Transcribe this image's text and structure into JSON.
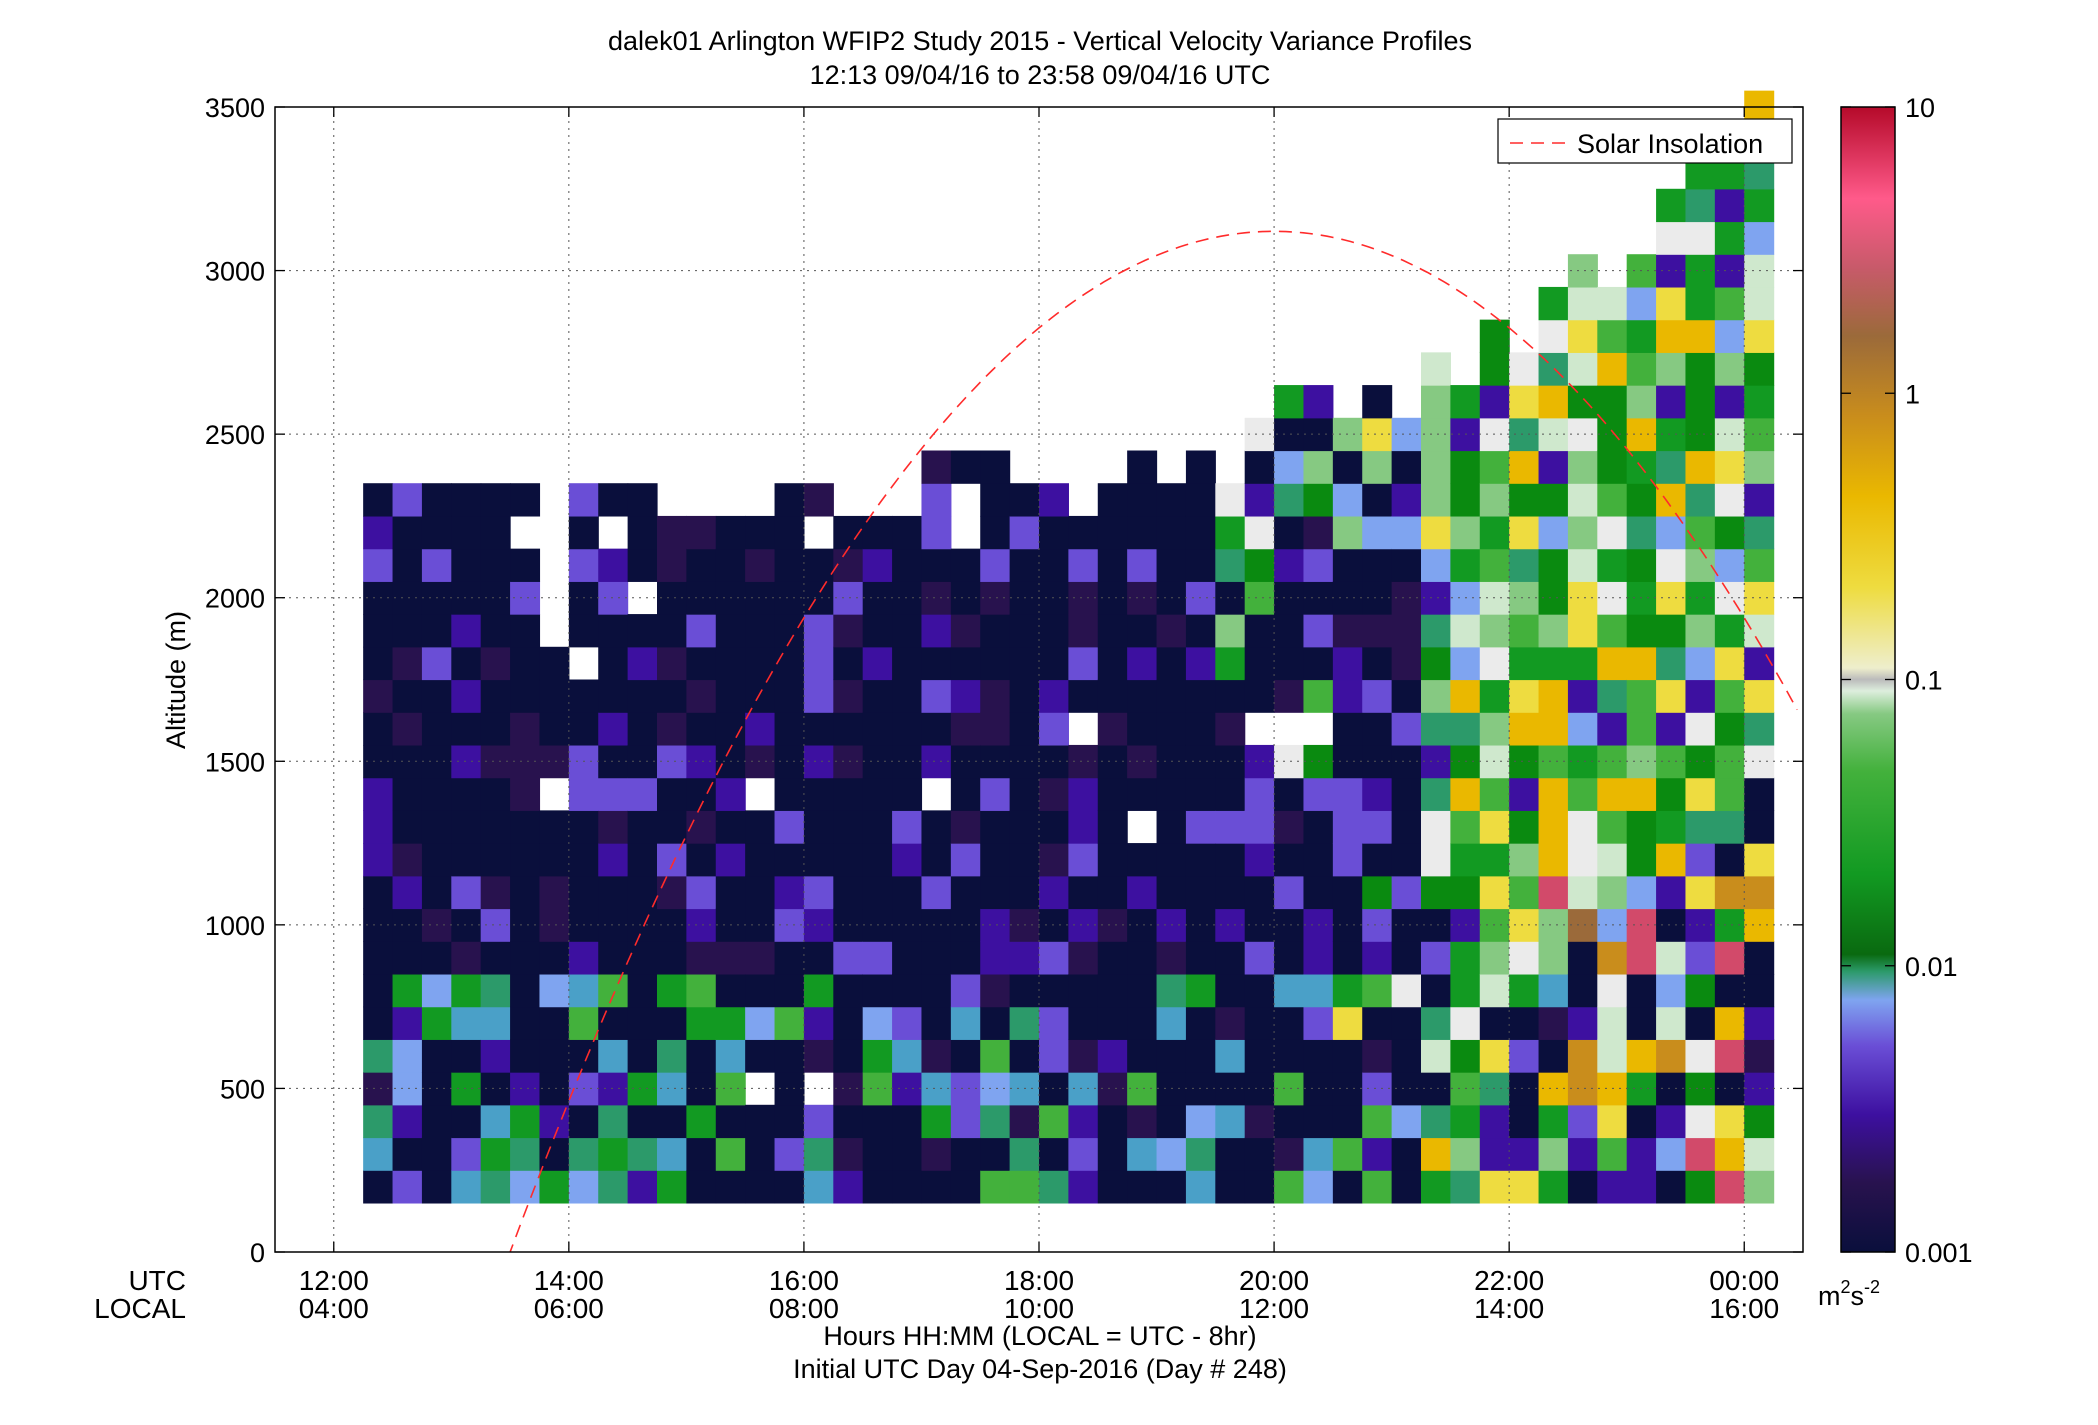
{
  "chart_data": {
    "type": "heatmap",
    "title": "dalek01 Arlington WFIP2 Study 2015 - Vertical Velocity Variance Profiles",
    "subtitle": "12:13 09/04/16 to 23:58 09/04/16  UTC",
    "ylabel": "Altitude (m)",
    "xlabel": "Hours HH:MM  (LOCAL = UTC - 8hr)",
    "xlabel2": "Initial UTC Day 04-Sep-2016 (Day # 248)",
    "x_row_labels": [
      "UTC",
      "LOCAL"
    ],
    "x_ticks_utc": [
      "12:00",
      "14:00",
      "16:00",
      "18:00",
      "20:00",
      "22:00",
      "00:00"
    ],
    "x_ticks_local": [
      "04:00",
      "06:00",
      "08:00",
      "10:00",
      "12:00",
      "14:00",
      "16:00"
    ],
    "x_tick_hours": [
      12,
      14,
      16,
      18,
      20,
      22,
      24
    ],
    "xlim_hours": [
      11.5,
      24.5
    ],
    "y_ticks": [
      0,
      500,
      1000,
      1500,
      2000,
      2500,
      3000,
      3500
    ],
    "y_tick_labels": [
      "0",
      "500",
      "1000",
      "1500",
      "2000",
      "2500",
      "3000",
      "3500"
    ],
    "ylim": [
      0,
      3500
    ],
    "grid": true,
    "legend": {
      "entries": [
        "Solar Insolation"
      ],
      "position": "top-right"
    },
    "colorbar": {
      "scale": "log",
      "range": [
        0.001,
        10
      ],
      "ticks": [
        0.001,
        0.01,
        0.1,
        1,
        10
      ],
      "tick_labels": [
        "0.001",
        "0.01",
        "0.1",
        "1",
        "10"
      ],
      "units_base": "m",
      "units_exp1": "2",
      "units_mid": "s",
      "units_exp2": "-2"
    },
    "grid_spec": {
      "start_hour": 12.25,
      "bin_hours": 0.25,
      "start_alt": 200,
      "bin_alt": 100,
      "n_bins": 48
    },
    "solar_insolation": {
      "peak_hour": 20.0,
      "peak_alt": 3120,
      "zero_hour": 13.5
    },
    "profiles": [
      {
        "top": 2300,
        "wet": 0,
        "holes": []
      },
      {
        "top": 2300,
        "wet": 0,
        "holes": []
      },
      {
        "top": 2300,
        "wet": 0,
        "holes": [
          1550
        ]
      },
      {
        "top": 2300,
        "wet": 0,
        "holes": []
      },
      {
        "top": 2300,
        "wet": 0,
        "holes": []
      },
      {
        "top": 2300,
        "wet": 0,
        "holes": [
          2200,
          1150
        ]
      },
      {
        "top": 2300,
        "wet": 0,
        "holes": [
          2300,
          2200,
          2100,
          2000,
          1900,
          1400
        ]
      },
      {
        "top": 2300,
        "wet": 0,
        "holes": [
          1800
        ]
      },
      {
        "top": 2300,
        "wet": 0,
        "holes": [
          2200
        ]
      },
      {
        "top": 2300,
        "wet": 0,
        "holes": [
          2000
        ]
      },
      {
        "top": 2200,
        "wet": 0,
        "holes": []
      },
      {
        "top": 2200,
        "wet": 0,
        "holes": []
      },
      {
        "top": 2200,
        "wet": 0,
        "holes": []
      },
      {
        "top": 2200,
        "wet": 0,
        "holes": [
          1400,
          500
        ]
      },
      {
        "top": 2300,
        "wet": 0,
        "holes": []
      },
      {
        "top": 2300,
        "wet": 0,
        "holes": [
          2200,
          500
        ]
      },
      {
        "top": 2200,
        "wet": 0,
        "holes": []
      },
      {
        "top": 2200,
        "wet": 0,
        "holes": []
      },
      {
        "top": 2200,
        "wet": 0,
        "holes": []
      },
      {
        "top": 2400,
        "wet": 0,
        "holes": [
          1400
        ]
      },
      {
        "top": 2400,
        "wet": 0,
        "holes": [
          2300,
          2200
        ]
      },
      {
        "top": 2400,
        "wet": 0,
        "holes": []
      },
      {
        "top": 2300,
        "wet": 0,
        "holes": []
      },
      {
        "top": 2300,
        "wet": 0,
        "holes": []
      },
      {
        "top": 2200,
        "wet": 0,
        "holes": [
          1600
        ]
      },
      {
        "top": 2300,
        "wet": 0,
        "holes": []
      },
      {
        "top": 2400,
        "wet": 0,
        "holes": [
          1300
        ]
      },
      {
        "top": 2300,
        "wet": 0,
        "holes": []
      },
      {
        "top": 2400,
        "wet": 0,
        "holes": []
      },
      {
        "top": 2300,
        "wet": 0.25,
        "holes": []
      },
      {
        "top": 2500,
        "wet": 0.25,
        "holes": [
          1600
        ]
      },
      {
        "top": 2600,
        "wet": 0.15,
        "holes": [
          1600
        ]
      },
      {
        "top": 2600,
        "wet": 0.15,
        "holes": [
          1600
        ]
      },
      {
        "top": 2500,
        "wet": 0.2,
        "holes": []
      },
      {
        "top": 2600,
        "wet": 0.2,
        "holes": []
      },
      {
        "top": 2500,
        "wet": 0.2,
        "holes": []
      },
      {
        "top": 2700,
        "wet": 0.6,
        "holes": []
      },
      {
        "top": 2600,
        "wet": 0.8,
        "holes": []
      },
      {
        "top": 2800,
        "wet": 0.85,
        "holes": []
      },
      {
        "top": 2700,
        "wet": 0.9,
        "holes": []
      },
      {
        "top": 2900,
        "wet": 0.95,
        "holes": []
      },
      {
        "top": 3000,
        "wet": 0.95,
        "holes": []
      },
      {
        "top": 2900,
        "wet": 0.95,
        "holes": []
      },
      {
        "top": 3000,
        "wet": 0.95,
        "holes": []
      },
      {
        "top": 3200,
        "wet": 0.95,
        "holes": []
      },
      {
        "top": 3300,
        "wet": 0.95,
        "holes": []
      },
      {
        "top": 3400,
        "wet": 0.95,
        "holes": []
      },
      {
        "top": 3500,
        "wet": 0.95,
        "holes": []
      }
    ]
  },
  "colors": {
    "solar": "#ff2b2b",
    "colormap": [
      "#0a0f3c",
      "#28124e",
      "#3d10a0",
      "#6a4ed6",
      "#7fa4f0",
      "#4aa0c8",
      "#2c9a6a",
      "#129a22",
      "#0a8a10",
      "#43b13c",
      "#86c982",
      "#cfe8cd",
      "#ebebeb",
      "#eedc40",
      "#eab800",
      "#c98d1c",
      "#9b6a3a",
      "#d24a6a",
      "#b50a2a"
    ]
  }
}
